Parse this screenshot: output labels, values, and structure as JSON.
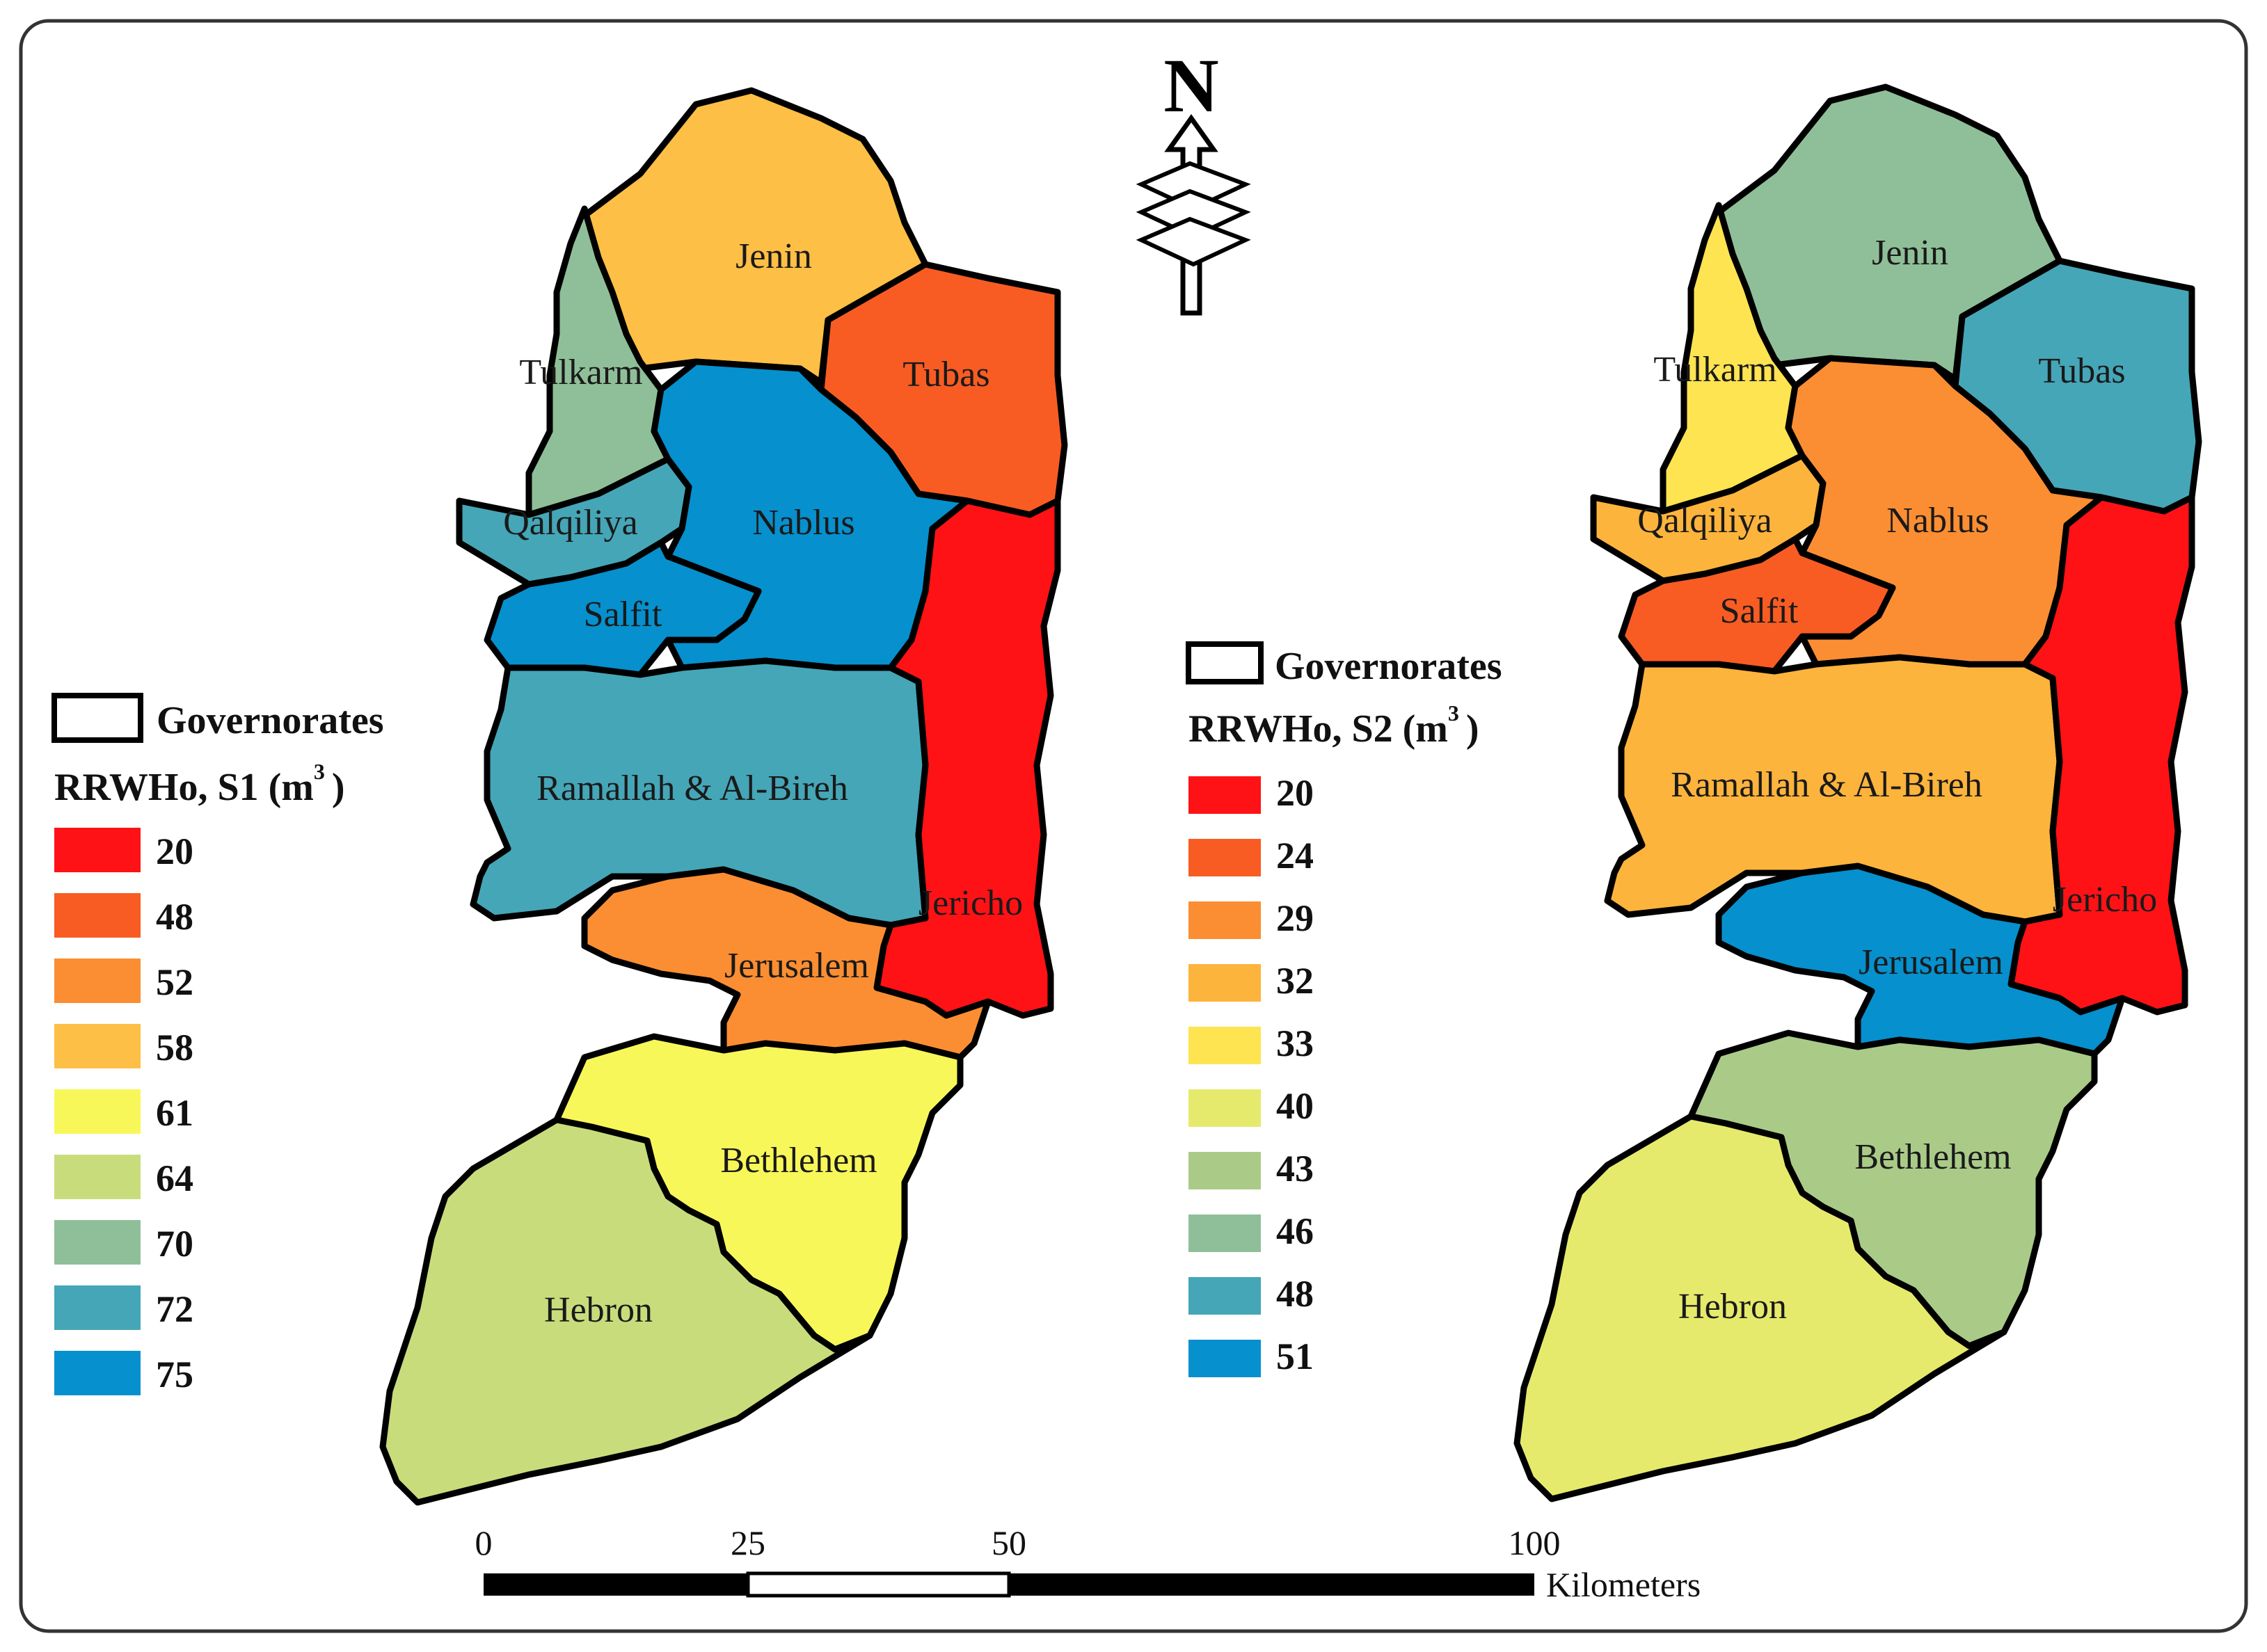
{
  "map_left": {
    "regions": {
      "jenin": {
        "label": "Jenin",
        "color": "#fdbf45"
      },
      "tulkarm": {
        "label": "Tulkarm",
        "color": "#8fbf98"
      },
      "tubas": {
        "label": "Tubas",
        "color": "#f85c23"
      },
      "qalqiliya": {
        "label": "Qalqiliya",
        "color": "#45a6b7"
      },
      "nablus": {
        "label": "Nablus",
        "color": "#0690cd"
      },
      "salfit": {
        "label": "Salfit",
        "color": "#0690cd"
      },
      "ramallah": {
        "label": "Ramallah & Al-Bireh",
        "color": "#45a6b7"
      },
      "jericho": {
        "label": "Jericho",
        "color": "#fe1215"
      },
      "jerusalem": {
        "label": "Jerusalem",
        "color": "#fb8e32"
      },
      "bethlehem": {
        "label": "Bethlehem",
        "color": "#f8f759"
      },
      "hebron": {
        "label": "Hebron",
        "color": "#c9dc7c"
      }
    },
    "legend": {
      "boundary_label": "Governorates",
      "title_main": "RRWHo, S1 (m",
      "title_sup": "3",
      "title_end": ")",
      "classes": [
        {
          "value": "20",
          "color": "#fe1215"
        },
        {
          "value": "48",
          "color": "#f85c23"
        },
        {
          "value": "52",
          "color": "#fb8e32"
        },
        {
          "value": "58",
          "color": "#fdbf45"
        },
        {
          "value": "61",
          "color": "#f8f759"
        },
        {
          "value": "64",
          "color": "#c9dc7c"
        },
        {
          "value": "70",
          "color": "#8fbf98"
        },
        {
          "value": "72",
          "color": "#45a6b7"
        },
        {
          "value": "75",
          "color": "#0690cd"
        }
      ]
    }
  },
  "map_right": {
    "regions": {
      "jenin": {
        "label": "Jenin",
        "color": "#8fbf98"
      },
      "tulkarm": {
        "label": "Tulkarm",
        "color": "#ffe452"
      },
      "tubas": {
        "label": "Tubas",
        "color": "#45a6b7"
      },
      "qalqiliya": {
        "label": "Qalqiliya",
        "color": "#fdb43c"
      },
      "nablus": {
        "label": "Nablus",
        "color": "#fb8e32"
      },
      "salfit": {
        "label": "Salfit",
        "color": "#f85c23"
      },
      "ramallah": {
        "label": "Ramallah & Al-Bireh",
        "color": "#fdb43c"
      },
      "jericho": {
        "label": "Jericho",
        "color": "#fe1215"
      },
      "jerusalem": {
        "label": "Jerusalem",
        "color": "#0690cd"
      },
      "bethlehem": {
        "label": "Bethlehem",
        "color": "#aacb88"
      },
      "hebron": {
        "label": "Hebron",
        "color": "#e6ea6c"
      }
    },
    "legend": {
      "boundary_label": "Governorates",
      "title_main": "RRWHo, S2 (m",
      "title_sup": "3",
      "title_end": ")",
      "classes": [
        {
          "value": "20",
          "color": "#fe1215"
        },
        {
          "value": "24",
          "color": "#f85c23"
        },
        {
          "value": "29",
          "color": "#fb8e32"
        },
        {
          "value": "32",
          "color": "#fdb43c"
        },
        {
          "value": "33",
          "color": "#ffe452"
        },
        {
          "value": "40",
          "color": "#e6ea6c"
        },
        {
          "value": "43",
          "color": "#aacb88"
        },
        {
          "value": "46",
          "color": "#8fbf98"
        },
        {
          "value": "48",
          "color": "#45a6b7"
        },
        {
          "value": "51",
          "color": "#0690cd"
        }
      ]
    }
  },
  "north_arrow": {
    "letter": "N"
  },
  "scale_bar": {
    "ticks": [
      "0",
      "25",
      "50",
      "100"
    ],
    "unit": "Kilometers"
  }
}
